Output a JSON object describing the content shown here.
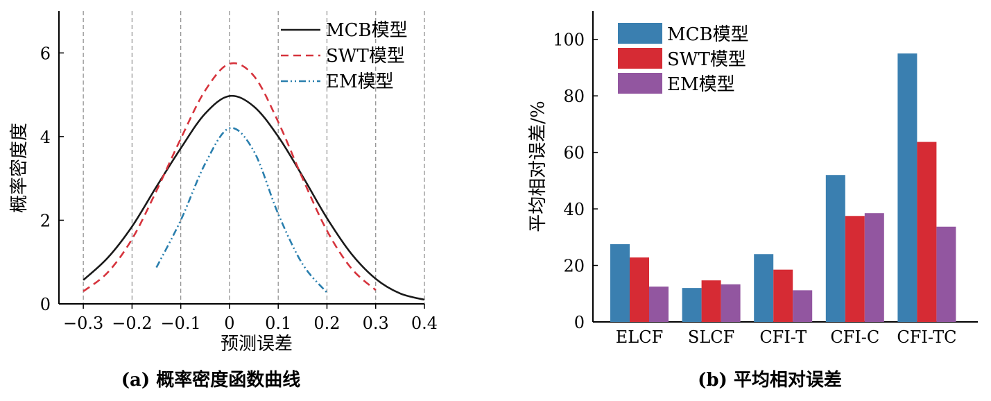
{
  "colors": {
    "mcb_line": "#1a1a1a",
    "swt_line": "#d6333c",
    "em_line": "#2a7fae",
    "mcb_bar": "#3a7fb0",
    "swt_bar": "#d62b34",
    "em_bar": "#9256a0",
    "grid": "#8a8a8a"
  },
  "chart_data": [
    {
      "type": "line",
      "caption": "(a) 概率密度函数曲线",
      "xlabel": "预测误差",
      "ylabel": "概率密度度",
      "xlim": [
        -0.35,
        0.4
      ],
      "ylim": [
        0,
        7
      ],
      "xticks": [
        -0.3,
        -0.2,
        -0.1,
        0,
        0.1,
        0.2,
        0.3,
        0.4
      ],
      "xtick_labels": [
        "−0.3",
        "−0.2",
        "−0.1",
        "0",
        "0.1",
        "0.2",
        "0.3",
        "0.4"
      ],
      "yticks": [
        0,
        2,
        4,
        6
      ],
      "ytick_labels": [
        "0",
        "2",
        "4",
        "6"
      ],
      "grid": "vertical dashed",
      "legend": "top-right",
      "series": [
        {
          "name": "MCB模型",
          "style": "solid",
          "x": [
            -0.3,
            -0.25,
            -0.2,
            -0.15,
            -0.1,
            -0.05,
            0,
            0.05,
            0.1,
            0.15,
            0.2,
            0.25,
            0.3,
            0.35,
            0.4
          ],
          "y": [
            0.57,
            1.1,
            1.85,
            2.8,
            3.72,
            4.55,
            4.97,
            4.72,
            4.0,
            3.05,
            2.05,
            1.2,
            0.6,
            0.25,
            0.1
          ]
        },
        {
          "name": "SWT模型",
          "style": "dashed",
          "x": [
            -0.3,
            -0.25,
            -0.2,
            -0.15,
            -0.1,
            -0.05,
            0,
            0.05,
            0.1,
            0.15,
            0.2,
            0.25,
            0.3
          ],
          "y": [
            0.3,
            0.75,
            1.55,
            2.7,
            3.95,
            5.1,
            5.74,
            5.45,
            4.35,
            3.0,
            1.75,
            0.85,
            0.33
          ]
        },
        {
          "name": "EM模型",
          "style": "dashdot",
          "x": [
            -0.15,
            -0.1,
            -0.05,
            0,
            0.05,
            0.1,
            0.15,
            0.2
          ],
          "y": [
            0.87,
            2.0,
            3.35,
            4.2,
            3.65,
            2.15,
            0.95,
            0.27
          ]
        }
      ]
    },
    {
      "type": "bar",
      "caption": "(b) 平均相对误差",
      "ylabel": "平均相对误差/%",
      "categories": [
        "ELCF",
        "SLCF",
        "CFI-T",
        "CFI-C",
        "CFI-TC"
      ],
      "ylim": [
        0,
        110
      ],
      "yticks": [
        0,
        20,
        40,
        60,
        80,
        100
      ],
      "ytick_labels": [
        "0",
        "20",
        "40",
        "60",
        "80",
        "100"
      ],
      "legend": "top-left",
      "series": [
        {
          "name": "MCB模型",
          "values": [
            27.5,
            12.0,
            24.0,
            52.0,
            95.0
          ]
        },
        {
          "name": "SWT模型",
          "values": [
            22.8,
            14.7,
            18.5,
            37.5,
            63.7
          ]
        },
        {
          "name": "EM模型",
          "values": [
            12.5,
            13.3,
            11.2,
            38.5,
            33.7
          ]
        }
      ]
    }
  ]
}
